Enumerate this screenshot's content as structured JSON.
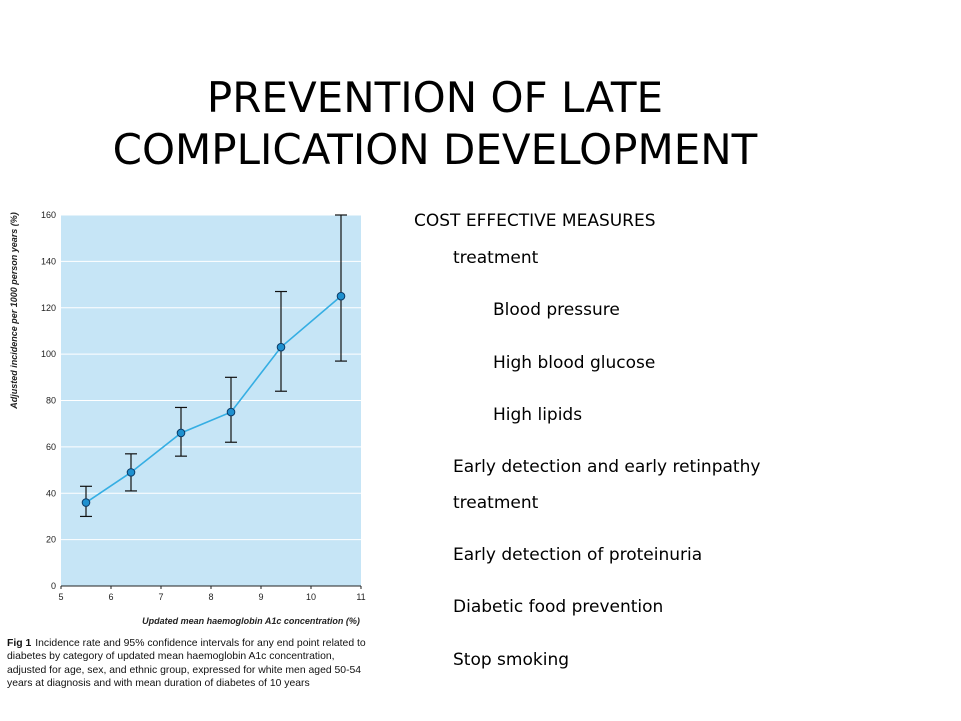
{
  "slide": {
    "title_line1": "PREVENTION OF LATE",
    "title_line2": "COMPLICATION DEVELOPMENT"
  },
  "figure": {
    "caption_label": "Fig 1",
    "caption_text": "Incidence rate and 95% confidence intervals for any end point related to diabetes by category of updated mean haemoglobin A1c concentration, adjusted for age, sex, and ethnic group, expressed for white men aged 50-54 years at diagnosis and with mean duration of diabetes of 10 years"
  },
  "chart_data": {
    "type": "scatter",
    "xlabel": "Updated mean haemoglobin A1c concentration (%)",
    "ylabel": "Adjusted incidence per 1000 person years (%)",
    "xlim": [
      5,
      11
    ],
    "ylim": [
      0,
      160
    ],
    "xticks": [
      5,
      6,
      7,
      8,
      9,
      10,
      11
    ],
    "yticks": [
      0,
      20,
      40,
      60,
      80,
      100,
      120,
      140,
      160
    ],
    "grid": true,
    "background": "#c6e5f6",
    "line_color": "#35aee3",
    "point_color": "#1e90cf",
    "points": [
      {
        "x": 5.5,
        "y": 36,
        "lo": 30,
        "hi": 43
      },
      {
        "x": 6.4,
        "y": 49,
        "lo": 41,
        "hi": 57
      },
      {
        "x": 7.4,
        "y": 66,
        "lo": 56,
        "hi": 77
      },
      {
        "x": 8.4,
        "y": 75,
        "lo": 62,
        "hi": 90
      },
      {
        "x": 9.4,
        "y": 103,
        "lo": 84,
        "hi": 127
      },
      {
        "x": 10.6,
        "y": 125,
        "lo": 97,
        "hi": 160
      }
    ]
  },
  "content": {
    "heading": "COST EFFECTIVE MEASURES",
    "treatment": "treatment",
    "bp": "Blood pressure",
    "glucose": "High blood glucose",
    "lipids": "High lipids",
    "retinopathy": "Early detection and early retinpathy",
    "retinopathy_cont": "treatment",
    "proteinuria": "Early detection of proteinuria",
    "food": "Diabetic food prevention",
    "smoking": "Stop smoking"
  }
}
